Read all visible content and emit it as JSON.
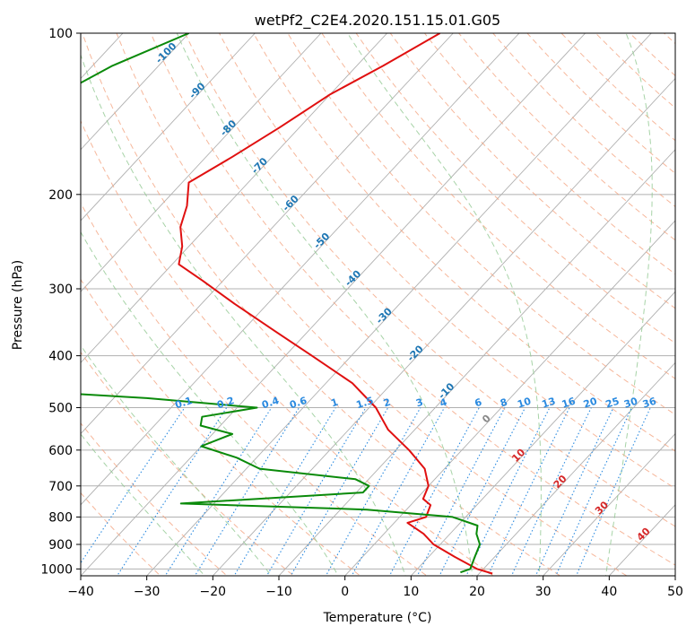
{
  "chart_data": {
    "type": "line",
    "title": "wetPf2_C2E4.2020.151.15.01.G05",
    "xlabel": "Temperature (°C)",
    "ylabel": "Pressure (hPa)",
    "xlim": [
      -40,
      50
    ],
    "ylim": [
      1030,
      100
    ],
    "y_scale": "log",
    "grid": true,
    "x_ticks": [
      -40,
      -30,
      -20,
      -10,
      0,
      10,
      20,
      30,
      40,
      50
    ],
    "y_ticks": [
      100,
      200,
      300,
      400,
      500,
      600,
      700,
      800,
      900,
      1000
    ],
    "series": [
      {
        "color": "#e01010",
        "points": [
          [
            100,
            -62
          ],
          [
            115,
            -66
          ],
          [
            130,
            -70
          ],
          [
            150,
            -73
          ],
          [
            170,
            -76
          ],
          [
            190,
            -79
          ],
          [
            210,
            -76
          ],
          [
            230,
            -74
          ],
          [
            250,
            -71
          ],
          [
            270,
            -69
          ],
          [
            290,
            -63
          ],
          [
            320,
            -55
          ],
          [
            360,
            -45
          ],
          [
            400,
            -36
          ],
          [
            450,
            -26
          ],
          [
            500,
            -19
          ],
          [
            550,
            -14
          ],
          [
            600,
            -8
          ],
          [
            650,
            -3
          ],
          [
            700,
            0
          ],
          [
            740,
            1
          ],
          [
            760,
            3
          ],
          [
            800,
            4
          ],
          [
            820,
            2
          ],
          [
            860,
            6
          ],
          [
            900,
            9
          ],
          [
            950,
            14
          ],
          [
            1000,
            19
          ],
          [
            1020,
            22
          ]
        ]
      },
      {
        "color": "#0a8a0a",
        "points": [
          [
            100,
            -100
          ],
          [
            115,
            -107
          ],
          [
            130,
            -111
          ],
          [
            150,
            -117
          ],
          [
            170,
            -116
          ],
          [
            200,
            -113
          ],
          [
            230,
            -109
          ],
          [
            250,
            -109
          ],
          [
            270,
            -103
          ],
          [
            290,
            -97
          ],
          [
            320,
            -89
          ],
          [
            360,
            -80
          ],
          [
            380,
            -82
          ],
          [
            400,
            -79
          ],
          [
            420,
            -77
          ],
          [
            450,
            -70
          ],
          [
            470,
            -68
          ],
          [
            480,
            -55
          ],
          [
            500,
            -37
          ],
          [
            520,
            -44
          ],
          [
            540,
            -43
          ],
          [
            560,
            -37
          ],
          [
            590,
            -40
          ],
          [
            620,
            -33
          ],
          [
            650,
            -28
          ],
          [
            680,
            -12
          ],
          [
            700,
            -9
          ],
          [
            720,
            -9
          ],
          [
            755,
            -35
          ],
          [
            775,
            -6
          ],
          [
            800,
            8
          ],
          [
            830,
            13
          ],
          [
            860,
            14
          ],
          [
            900,
            16
          ],
          [
            950,
            17
          ],
          [
            1000,
            18
          ],
          [
            1015,
            17
          ]
        ]
      }
    ],
    "reference_lines": {
      "dry_adiabats": [
        -30,
        -20,
        -10,
        0,
        10,
        20,
        30,
        40,
        50,
        60,
        70,
        80,
        90,
        100,
        110,
        120,
        130,
        140,
        150,
        160,
        170,
        180,
        190,
        200,
        210,
        220
      ],
      "moist_adiabats": [
        -20,
        -10,
        0,
        10,
        20,
        30,
        40
      ],
      "mixing_ratio_lines": [
        "0.1",
        "0.2",
        "0.4",
        "0.6",
        "1",
        "1.5",
        "2",
        "3",
        "4",
        "6",
        "8",
        "10",
        "13",
        "16",
        "20",
        "25",
        "30",
        "36"
      ],
      "isotherm_labels_blue": [
        "-100",
        "-90",
        "-80",
        "-70",
        "-60",
        "-50",
        "-40",
        "-30",
        "-20",
        "-10"
      ],
      "isotherm_labels_gray": [
        "0"
      ],
      "isotherm_labels_red": [
        "10",
        "20",
        "30",
        "40"
      ],
      "colors": {
        "isotherm_grid": "#b0b0b0",
        "dry_adiabat": "#f4a582",
        "moist_adiabat": "#91c891",
        "mixing_ratio": "#2a8ae0",
        "cold_isotherm_label": "#1f77b4",
        "warm_isotherm_label": "#d62728",
        "zero_isotherm_label": "#888888",
        "mixing_ratio_label": "#2a8ae0"
      }
    }
  }
}
